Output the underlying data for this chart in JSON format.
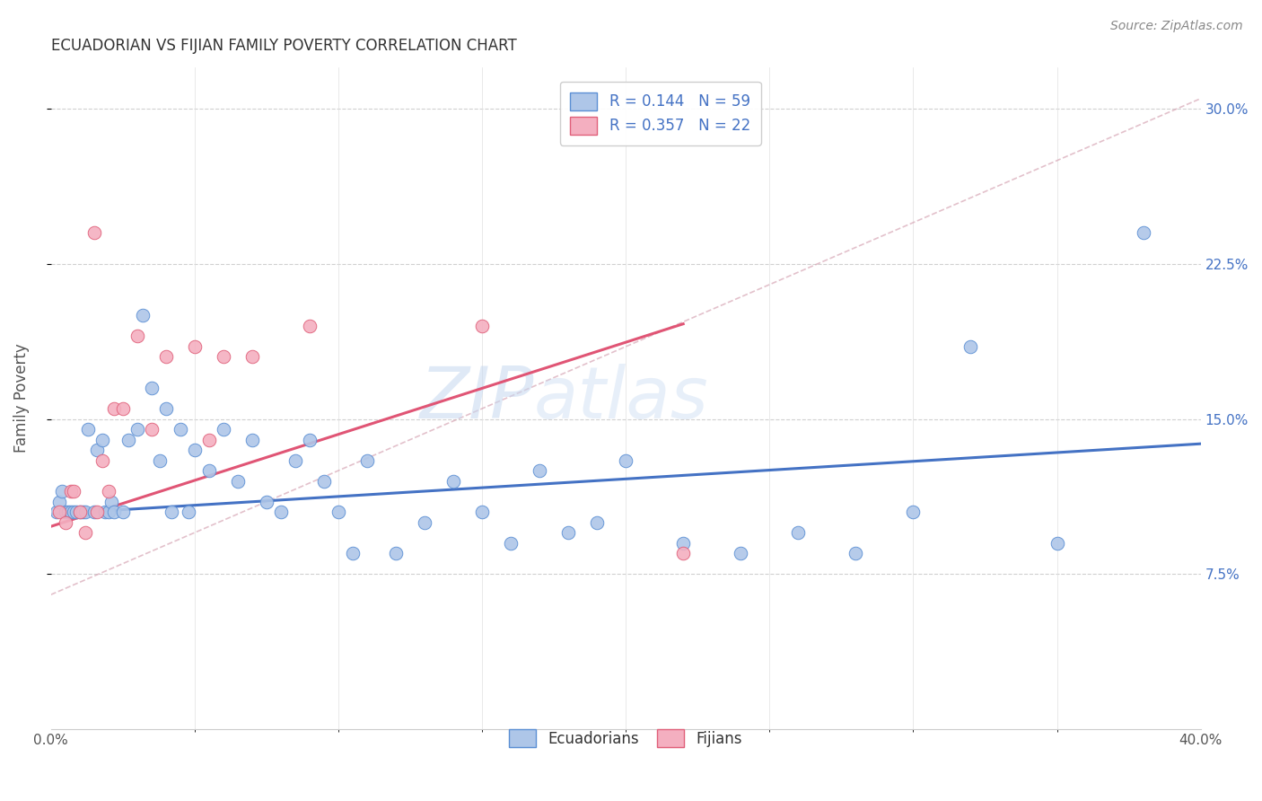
{
  "title": "ECUADORIAN VS FIJIAN FAMILY POVERTY CORRELATION CHART",
  "source": "Source: ZipAtlas.com",
  "ylabel": "Family Poverty",
  "xlim": [
    0.0,
    0.4
  ],
  "ylim": [
    0.0,
    0.32
  ],
  "ecuadorian_color": "#aec6e8",
  "fijian_color": "#f4afc0",
  "ecuadorian_edge_color": "#5b8fd4",
  "fijian_edge_color": "#e0607a",
  "ecuadorian_line_color": "#4472c4",
  "fijian_line_color": "#e05575",
  "dashed_line_color": "#d4a0b0",
  "R_ecu": 0.144,
  "N_ecu": 59,
  "R_fij": 0.357,
  "N_fij": 22,
  "ytick_positions": [
    0.075,
    0.15,
    0.225,
    0.3
  ],
  "ytick_labels": [
    "7.5%",
    "15.0%",
    "22.5%",
    "30.0%"
  ],
  "ecu_x": [
    0.002,
    0.003,
    0.004,
    0.005,
    0.006,
    0.007,
    0.008,
    0.009,
    0.01,
    0.011,
    0.012,
    0.013,
    0.015,
    0.016,
    0.018,
    0.019,
    0.02,
    0.021,
    0.022,
    0.025,
    0.027,
    0.03,
    0.032,
    0.035,
    0.038,
    0.04,
    0.042,
    0.045,
    0.048,
    0.05,
    0.055,
    0.06,
    0.065,
    0.07,
    0.075,
    0.08,
    0.085,
    0.09,
    0.095,
    0.1,
    0.105,
    0.11,
    0.12,
    0.13,
    0.14,
    0.15,
    0.16,
    0.17,
    0.18,
    0.19,
    0.2,
    0.22,
    0.24,
    0.26,
    0.28,
    0.3,
    0.32,
    0.35,
    0.38
  ],
  "ecu_y": [
    0.105,
    0.11,
    0.115,
    0.105,
    0.105,
    0.105,
    0.105,
    0.105,
    0.105,
    0.105,
    0.105,
    0.145,
    0.105,
    0.135,
    0.14,
    0.105,
    0.105,
    0.11,
    0.105,
    0.105,
    0.14,
    0.145,
    0.2,
    0.165,
    0.13,
    0.155,
    0.105,
    0.145,
    0.105,
    0.135,
    0.125,
    0.145,
    0.12,
    0.14,
    0.11,
    0.105,
    0.13,
    0.14,
    0.12,
    0.105,
    0.085,
    0.13,
    0.085,
    0.1,
    0.12,
    0.105,
    0.09,
    0.125,
    0.095,
    0.1,
    0.13,
    0.09,
    0.085,
    0.095,
    0.085,
    0.105,
    0.185,
    0.09,
    0.24
  ],
  "fij_x": [
    0.003,
    0.005,
    0.007,
    0.008,
    0.01,
    0.012,
    0.015,
    0.016,
    0.018,
    0.02,
    0.022,
    0.025,
    0.03,
    0.035,
    0.04,
    0.05,
    0.055,
    0.06,
    0.07,
    0.09,
    0.15,
    0.22
  ],
  "fij_y": [
    0.105,
    0.1,
    0.115,
    0.115,
    0.105,
    0.095,
    0.24,
    0.105,
    0.13,
    0.115,
    0.155,
    0.155,
    0.19,
    0.145,
    0.18,
    0.185,
    0.14,
    0.18,
    0.18,
    0.195,
    0.195,
    0.085
  ],
  "ecu_line_x0": 0.0,
  "ecu_line_y0": 0.104,
  "ecu_line_x1": 0.4,
  "ecu_line_y1": 0.138,
  "fij_line_x0": 0.0,
  "fij_line_y0": 0.098,
  "fij_line_x1": 0.22,
  "fij_line_y1": 0.196,
  "dash_line_x0": 0.0,
  "dash_line_y0": 0.065,
  "dash_line_x1": 0.4,
  "dash_line_y1": 0.305
}
